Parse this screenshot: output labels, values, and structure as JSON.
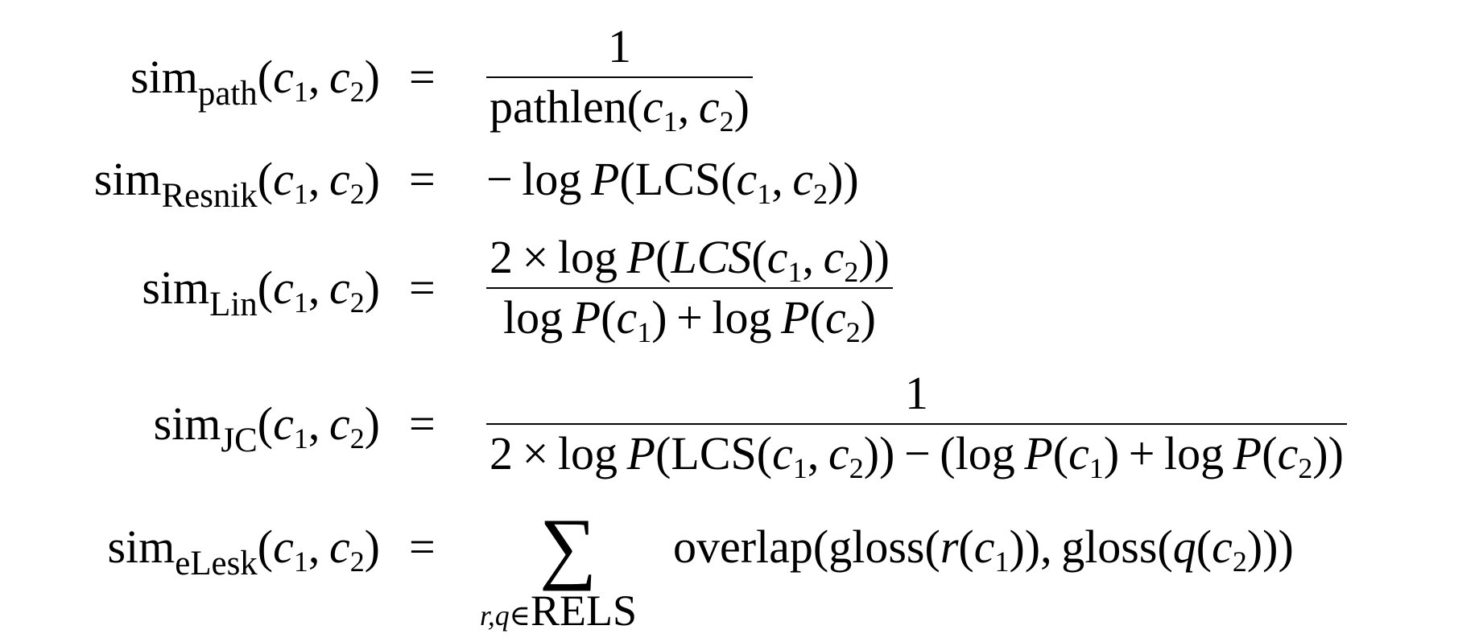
{
  "equations": [
    {
      "lhs_name": "sim",
      "lhs_subscript": "path",
      "args": "(c1, c2)",
      "operator": "=",
      "numerator": "1",
      "denominator": "pathlen(c1, c2)"
    },
    {
      "lhs_name": "sim",
      "lhs_subscript": "Resnik",
      "args": "(c1, c2)",
      "operator": "=",
      "expression": "− log P(LCS(c1, c2))"
    },
    {
      "lhs_name": "sim",
      "lhs_subscript": "Lin",
      "args": "(c1, c2)",
      "operator": "=",
      "numerator": "2 × log P(LCS(c1, c2))",
      "denominator": "log P(c1) + log P(c2)"
    },
    {
      "lhs_name": "sim",
      "lhs_subscript": "JC",
      "args": "(c1, c2)",
      "operator": "=",
      "numerator": "1",
      "denominator": "2 × log P(LCS(c1, c2)) − (log P(c1) + log P(c2))"
    },
    {
      "lhs_name": "sim",
      "lhs_subscript": "eLesk",
      "args": "(c1, c2)",
      "operator": "=",
      "sum_symbol": "∑",
      "sum_index": "r,q∈RELS",
      "expression": "overlap(gloss(r(c1)), gloss(q(c2)))"
    }
  ]
}
